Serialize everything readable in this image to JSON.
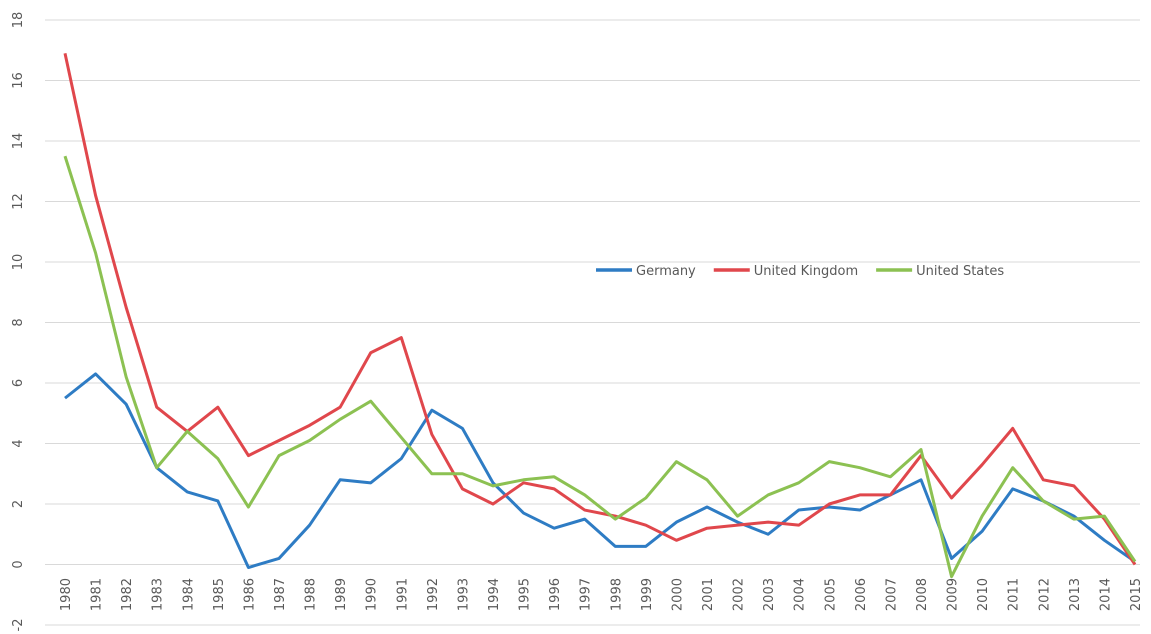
{
  "chart_data": {
    "type": "line",
    "categories": [
      "1980",
      "1981",
      "1982",
      "1983",
      "1984",
      "1985",
      "1986",
      "1987",
      "1988",
      "1989",
      "1990",
      "1991",
      "1992",
      "1993",
      "1994",
      "1995",
      "1996",
      "1997",
      "1998",
      "1999",
      "2000",
      "2001",
      "2002",
      "2003",
      "2004",
      "2005",
      "2006",
      "2007",
      "2008",
      "2009",
      "2010",
      "2011",
      "2012",
      "2013",
      "2014",
      "2015"
    ],
    "series": [
      {
        "name": "Germany",
        "color": "#2e7cc4",
        "values": [
          5.5,
          6.3,
          5.3,
          3.2,
          2.4,
          2.1,
          -0.1,
          0.2,
          1.3,
          2.8,
          2.7,
          3.5,
          5.1,
          4.5,
          2.7,
          1.7,
          1.2,
          1.5,
          0.6,
          0.6,
          1.4,
          1.9,
          1.4,
          1.0,
          1.8,
          1.9,
          1.8,
          2.3,
          2.8,
          0.2,
          1.1,
          2.5,
          2.1,
          1.6,
          0.8,
          0.1
        ]
      },
      {
        "name": "United Kingdom",
        "color": "#e0474c",
        "values": [
          16.9,
          12.2,
          8.5,
          5.2,
          4.4,
          5.2,
          3.6,
          4.1,
          4.6,
          5.2,
          7.0,
          7.5,
          4.3,
          2.5,
          2.0,
          2.7,
          2.5,
          1.8,
          1.6,
          1.3,
          0.8,
          1.2,
          1.3,
          1.4,
          1.3,
          2.0,
          2.3,
          2.3,
          3.6,
          2.2,
          3.3,
          4.5,
          2.8,
          2.6,
          1.5,
          0.0
        ]
      },
      {
        "name": "United States",
        "color": "#8cc152",
        "values": [
          13.5,
          10.3,
          6.2,
          3.2,
          4.4,
          3.5,
          1.9,
          3.6,
          4.1,
          4.8,
          5.4,
          4.2,
          3.0,
          3.0,
          2.6,
          2.8,
          2.9,
          2.3,
          1.5,
          2.2,
          3.4,
          2.8,
          1.6,
          2.3,
          2.7,
          3.4,
          3.2,
          2.9,
          3.8,
          -0.4,
          1.6,
          3.2,
          2.1,
          1.5,
          1.6,
          0.1
        ]
      }
    ],
    "ylim": [
      -2,
      18
    ],
    "yticks": [
      -2,
      0,
      2,
      4,
      6,
      8,
      10,
      12,
      14,
      16,
      18
    ],
    "grid": true
  }
}
